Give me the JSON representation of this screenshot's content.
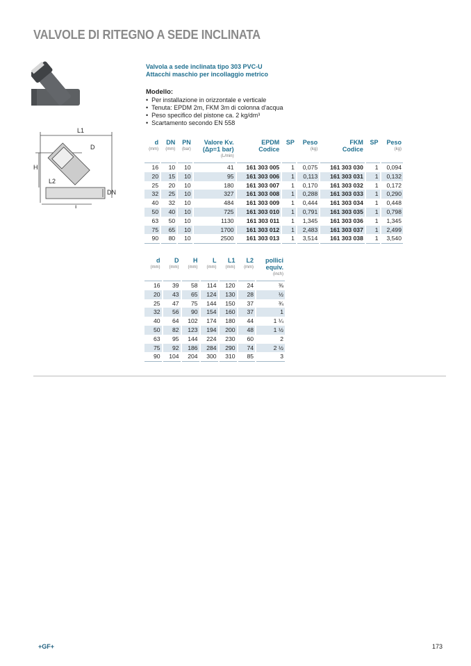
{
  "title": "VALVOLE DI RITEGNO A SEDE INCLINATA",
  "subtitle": [
    "Valvola a sede inclinata tipo 303 PVC-U",
    "Attacchi maschio per incollaggio metrico"
  ],
  "model": {
    "heading": "Modello:",
    "bullets": [
      "Per installazione in orizzontale e verticale",
      "Tenuta: EPDM 2m, FKM 3m di colonna d'acqua",
      "Peso specifico del pistone ca. 2 kg/dm³",
      "Scartamento secondo EN 558"
    ]
  },
  "drawing_labels": {
    "L1": "L1",
    "D": "D",
    "H": "H",
    "L2": "L2",
    "DN": "DN",
    "L": "L"
  },
  "table1": {
    "headers": [
      {
        "t": "d",
        "u": "(mm)"
      },
      {
        "t": "DN",
        "u": "(mm)"
      },
      {
        "t": "PN",
        "u": "(bar)"
      },
      {
        "t": "Valore Kv.",
        "t2": "(Δp=1 bar)",
        "u": "(L/min)"
      },
      {
        "t": "EPDM",
        "t2": "Codice",
        "u": ""
      },
      {
        "t": "SP",
        "u": ""
      },
      {
        "t": "Peso",
        "u": "(kg)"
      },
      {
        "t": "FKM",
        "t2": "Codice",
        "u": ""
      },
      {
        "t": "SP",
        "u": ""
      },
      {
        "t": "Peso",
        "u": "(kg)"
      }
    ],
    "rows": [
      [
        "16",
        "10",
        "10",
        "41",
        "161 303 005",
        "1",
        "0,075",
        "161 303 030",
        "1",
        "0,094"
      ],
      [
        "20",
        "15",
        "10",
        "95",
        "161 303 006",
        "1",
        "0,113",
        "161 303 031",
        "1",
        "0,132"
      ],
      [
        "25",
        "20",
        "10",
        "180",
        "161 303 007",
        "1",
        "0,170",
        "161 303 032",
        "1",
        "0,172"
      ],
      [
        "32",
        "25",
        "10",
        "327",
        "161 303 008",
        "1",
        "0,288",
        "161 303 033",
        "1",
        "0,290"
      ],
      [
        "40",
        "32",
        "10",
        "484",
        "161 303 009",
        "1",
        "0,444",
        "161 303 034",
        "1",
        "0,448"
      ],
      [
        "50",
        "40",
        "10",
        "725",
        "161 303 010",
        "1",
        "0,791",
        "161 303 035",
        "1",
        "0,798"
      ],
      [
        "63",
        "50",
        "10",
        "1130",
        "161 303 011",
        "1",
        "1,345",
        "161 303 036",
        "1",
        "1,345"
      ],
      [
        "75",
        "65",
        "10",
        "1700",
        "161 303 012",
        "1",
        "2,483",
        "161 303 037",
        "1",
        "2,499"
      ],
      [
        "90",
        "80",
        "10",
        "2500",
        "161 303 013",
        "1",
        "3,514",
        "161 303 038",
        "1",
        "3,540"
      ]
    ]
  },
  "table2": {
    "headers": [
      {
        "t": "d",
        "u": "(mm)"
      },
      {
        "t": "D",
        "u": "(mm)"
      },
      {
        "t": "H",
        "u": "(mm)"
      },
      {
        "t": "L",
        "u": "(mm)"
      },
      {
        "t": "L1",
        "u": "(mm)"
      },
      {
        "t": "L2",
        "u": "(mm)"
      },
      {
        "t": "pollici",
        "t2": "equiv.",
        "u": "(inch)"
      }
    ],
    "rows": [
      [
        "16",
        "39",
        "58",
        "114",
        "120",
        "24",
        "⅜"
      ],
      [
        "20",
        "43",
        "65",
        "124",
        "130",
        "28",
        "½"
      ],
      [
        "25",
        "47",
        "75",
        "144",
        "150",
        "37",
        "¾"
      ],
      [
        "32",
        "56",
        "90",
        "154",
        "160",
        "37",
        "1"
      ],
      [
        "40",
        "64",
        "102",
        "174",
        "180",
        "44",
        "1 ¼"
      ],
      [
        "50",
        "82",
        "123",
        "194",
        "200",
        "48",
        "1 ½"
      ],
      [
        "63",
        "95",
        "144",
        "224",
        "230",
        "60",
        "2"
      ],
      [
        "75",
        "92",
        "186",
        "284",
        "290",
        "74",
        "2 ½"
      ],
      [
        "90",
        "104",
        "204",
        "300",
        "310",
        "85",
        "3"
      ]
    ]
  },
  "footer": {
    "logo": "+GF+",
    "page": "173"
  },
  "colors": {
    "accent": "#1f6f8f",
    "title_gray": "#8a8a8a",
    "row_shade": "#dce6ee"
  }
}
